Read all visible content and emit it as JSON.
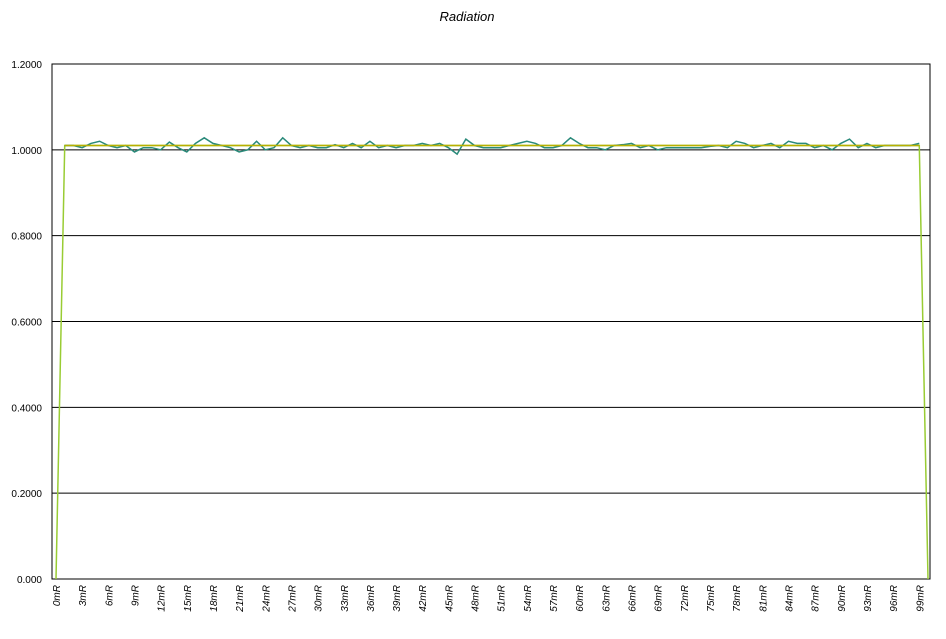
{
  "chart_data": {
    "type": "line",
    "title": "Radiation",
    "categories": [
      "0mR",
      null,
      null,
      "3mR",
      null,
      null,
      "6mR",
      null,
      null,
      "9mR",
      null,
      null,
      "12mR",
      null,
      null,
      "15mR",
      null,
      null,
      "18mR",
      null,
      null,
      "21mR",
      null,
      null,
      "24mR",
      null,
      null,
      "27mR",
      null,
      null,
      "30mR",
      null,
      null,
      "33mR",
      null,
      null,
      "36mR",
      null,
      null,
      "39mR",
      null,
      null,
      "42mR",
      null,
      null,
      "45mR",
      null,
      null,
      "48mR",
      null,
      null,
      "51mR",
      null,
      null,
      "54mR",
      null,
      null,
      "57mR",
      null,
      null,
      "60mR",
      null,
      null,
      "63mR",
      null,
      null,
      "66mR",
      null,
      null,
      "69mR",
      null,
      null,
      "72mR",
      null,
      null,
      "75mR",
      null,
      null,
      "78mR",
      null,
      null,
      "81mR",
      null,
      null,
      "84mR",
      null,
      null,
      "87mR",
      null,
      null,
      "90mR",
      null,
      null,
      "93mR",
      null,
      null,
      "96mR",
      null,
      null,
      "99mR",
      null
    ],
    "series": [
      {
        "color": "#99cc33",
        "values": [
          0,
          1.01,
          1.01,
          1.01,
          1.01,
          1.01,
          1.01,
          1.01,
          1.01,
          1.01,
          1.01,
          1.01,
          1.01,
          1.01,
          1.01,
          1.01,
          1.01,
          1.01,
          1.01,
          1.01,
          1.01,
          1.01,
          1.01,
          1.01,
          1.01,
          1.01,
          1.01,
          1.01,
          1.01,
          1.01,
          1.01,
          1.01,
          1.01,
          1.01,
          1.01,
          1.01,
          1.01,
          1.01,
          1.01,
          1.01,
          1.01,
          1.01,
          1.01,
          1.01,
          1.01,
          1.01,
          1.01,
          1.01,
          1.01,
          1.01,
          1.01,
          1.01,
          1.01,
          1.01,
          1.01,
          1.01,
          1.01,
          1.01,
          1.01,
          1.01,
          1.01,
          1.01,
          1.01,
          1.01,
          1.01,
          1.01,
          1.01,
          1.01,
          1.01,
          1.01,
          1.01,
          1.01,
          1.01,
          1.01,
          1.01,
          1.01,
          1.01,
          1.01,
          1.01,
          1.01,
          1.01,
          1.01,
          1.01,
          1.01,
          1.01,
          1.01,
          1.01,
          1.01,
          1.01,
          1.01,
          1.01,
          1.01,
          1.01,
          1.01,
          1.01,
          1.01,
          1.01,
          1.01,
          1.01,
          1.01,
          0
        ]
      },
      {
        "color": "#2a8a7a",
        "values": [
          null,
          1.01,
          1.01,
          1.005,
          1.015,
          1.02,
          1.01,
          1.005,
          1.01,
          0.995,
          1.005,
          1.005,
          1.0,
          1.018,
          1.005,
          0.995,
          1.015,
          1.028,
          1.015,
          1.01,
          1.005,
          0.995,
          1.0,
          1.02,
          1.0,
          1.005,
          1.028,
          1.01,
          1.005,
          1.01,
          1.005,
          1.005,
          1.012,
          1.005,
          1.015,
          1.005,
          1.02,
          1.005,
          1.01,
          1.005,
          1.01,
          1.01,
          1.015,
          1.01,
          1.015,
          1.005,
          0.99,
          1.025,
          1.01,
          1.005,
          1.005,
          1.005,
          1.01,
          1.015,
          1.02,
          1.015,
          1.005,
          1.005,
          1.01,
          1.028,
          1.015,
          1.005,
          1.005,
          1.0,
          1.01,
          1.012,
          1.015,
          1.005,
          1.01,
          1.0,
          1.005,
          1.005,
          1.005,
          1.005,
          1.005,
          1.008,
          1.01,
          1.005,
          1.02,
          1.015,
          1.005,
          1.01,
          1.015,
          1.005,
          1.02,
          1.015,
          1.015,
          1.005,
          1.01,
          1.0,
          1.015,
          1.025,
          1.005,
          1.015,
          1.005,
          1.01,
          1.01,
          1.01,
          1.01,
          1.015,
          null
        ]
      },
      {
        "color": "#b8b000",
        "values": [
          null,
          1.01,
          1.01,
          1.01,
          1.01,
          1.01,
          1.01,
          1.01,
          1.01,
          1.01,
          1.01,
          1.01,
          1.01,
          1.01,
          1.01,
          1.01,
          1.01,
          1.01,
          1.01,
          1.01,
          1.01,
          1.01,
          1.01,
          1.01,
          1.01,
          1.01,
          1.01,
          1.01,
          1.01,
          1.01,
          1.01,
          1.01,
          1.01,
          1.01,
          1.01,
          1.01,
          1.01,
          1.01,
          1.01,
          1.01,
          1.01,
          1.01,
          1.01,
          1.01,
          1.01,
          1.01,
          1.01,
          1.01,
          1.01,
          1.01,
          1.01,
          1.01,
          1.01,
          1.01,
          1.01,
          1.01,
          1.01,
          1.01,
          1.01,
          1.01,
          1.01,
          1.01,
          1.01,
          1.01,
          1.01,
          1.01,
          1.01,
          1.01,
          1.01,
          1.01,
          1.01,
          1.01,
          1.01,
          1.01,
          1.01,
          1.01,
          1.01,
          1.01,
          1.01,
          1.01,
          1.01,
          1.01,
          1.01,
          1.01,
          1.01,
          1.01,
          1.01,
          1.01,
          1.01,
          1.01,
          1.01,
          1.01,
          1.01,
          1.01,
          1.01,
          1.01,
          1.01,
          1.01,
          1.01,
          1.01,
          null
        ]
      }
    ],
    "ylim": [
      0,
      1.2
    ],
    "yticks": [
      {
        "value": 0,
        "label": "0.000"
      },
      {
        "value": 0.2,
        "label": "0.2000"
      },
      {
        "value": 0.4,
        "label": "0.4000"
      },
      {
        "value": 0.6,
        "label": "0.6000"
      },
      {
        "value": 0.8,
        "label": "0.8000"
      },
      {
        "value": 1,
        "label": "1.0000"
      },
      {
        "value": 1.2,
        "label": "1.2000"
      }
    ],
    "grid": true
  }
}
